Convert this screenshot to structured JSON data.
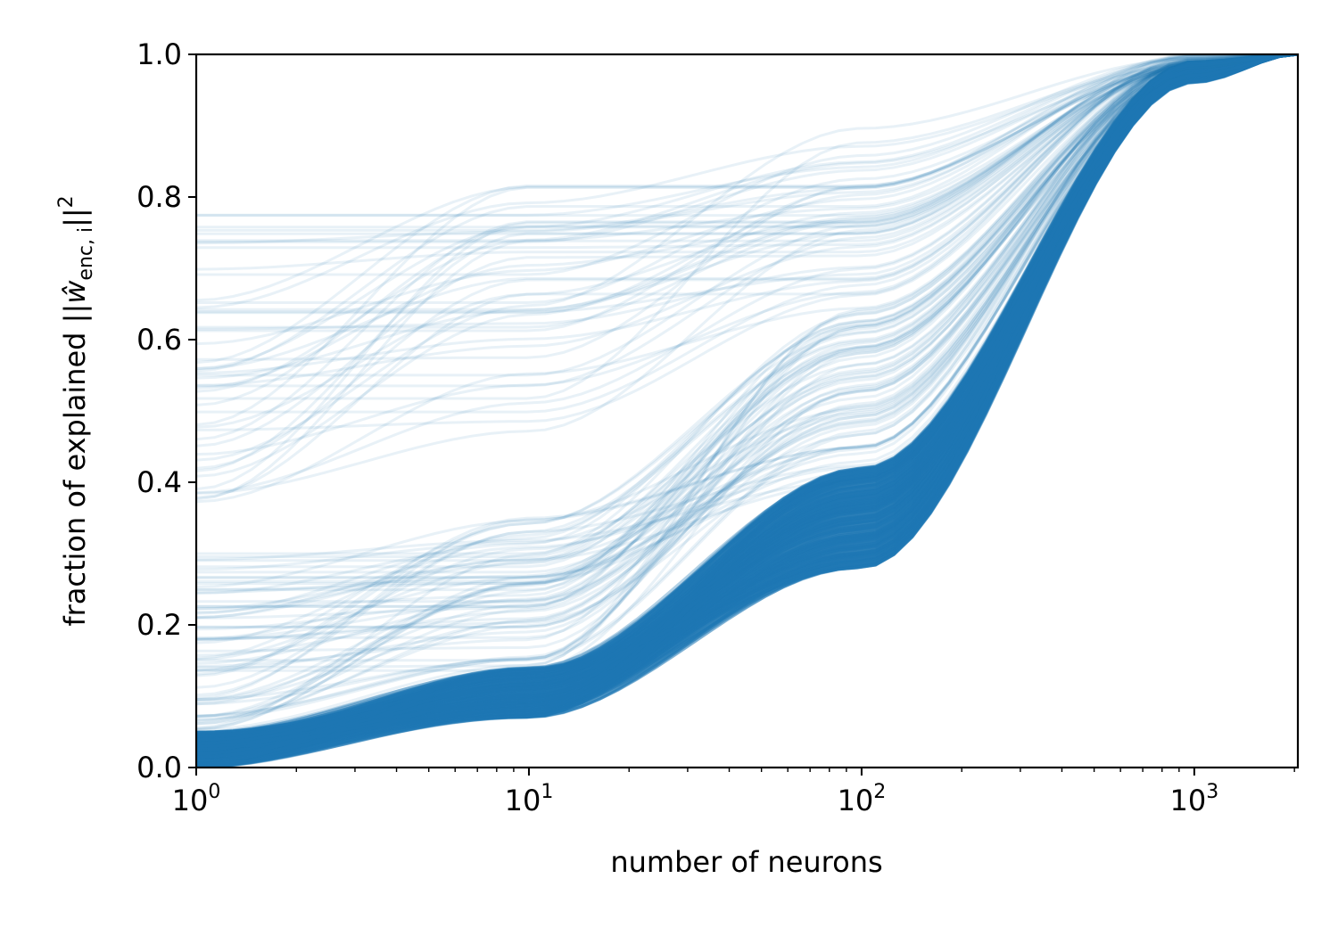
{
  "chart_data": {
    "type": "line",
    "title": "",
    "xlabel": "number of neurons",
    "ylabel": "fraction of explained ||ŵ_enc,i||²",
    "ylabel_parts": {
      "prefix": "fraction of explained ||",
      "w": "ŵ",
      "subscript": "enc, i",
      "suffix": "||",
      "superscript": "2"
    },
    "x_scale": "log",
    "xlim": [
      1,
      2048
    ],
    "ylim": [
      0.0,
      1.0
    ],
    "x_tick_labels": [
      {
        "value": 1,
        "base": "10",
        "exp": "0"
      },
      {
        "value": 10,
        "base": "10",
        "exp": "1"
      },
      {
        "value": 100,
        "base": "10",
        "exp": "2"
      },
      {
        "value": 1000,
        "base": "10",
        "exp": "3"
      }
    ],
    "y_ticks": [
      0.0,
      0.2,
      0.4,
      0.6,
      0.8,
      1.0
    ],
    "y_tick_labels": [
      "0.0",
      "0.2",
      "0.4",
      "0.6",
      "0.8",
      "1.0"
    ],
    "grid": false,
    "legend": "none",
    "line_color": "#1f77b4",
    "line_alpha": 0.1,
    "series_count": 2048,
    "series_families": [
      {
        "description": "dense band",
        "start_y_range": [
          0.0,
          0.05
        ],
        "y_at_10": [
          0.07,
          0.14
        ],
        "y_at_100": [
          0.28,
          0.42
        ],
        "y_at_1000": [
          0.96,
          0.99
        ]
      },
      {
        "description": "mid curves",
        "start_y_range": [
          0.05,
          0.3
        ],
        "y_at_10": [
          0.12,
          0.35
        ],
        "y_at_100": [
          0.4,
          0.65
        ],
        "y_at_1000": [
          0.97,
          0.995
        ]
      },
      {
        "description": "upper curves",
        "start_y_range": [
          0.37,
          0.78
        ],
        "y_at_10": [
          0.45,
          0.82
        ],
        "y_at_100": [
          0.6,
          0.9
        ],
        "y_at_1000": [
          0.98,
          1.0
        ]
      }
    ],
    "x_end": 2048,
    "y_end": 1.0
  }
}
